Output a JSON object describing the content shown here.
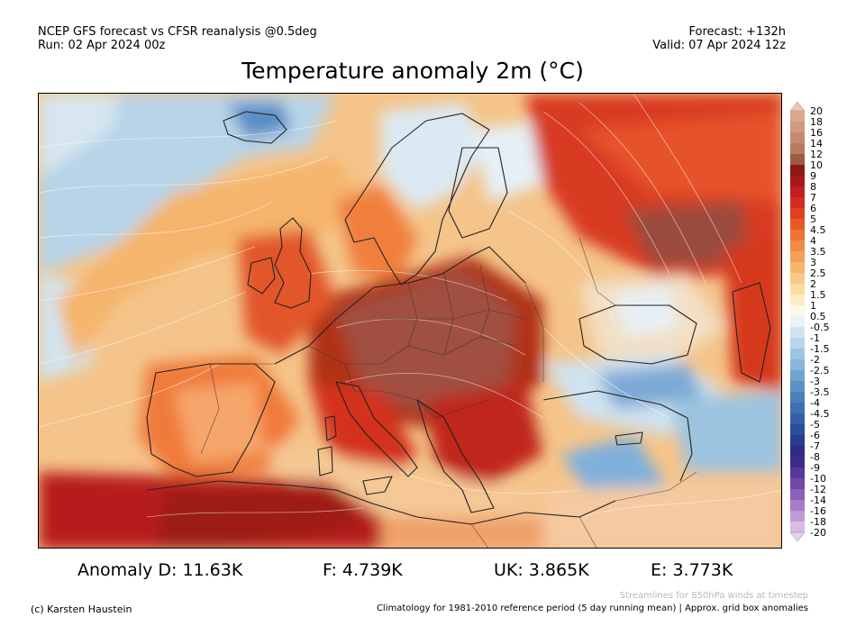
{
  "header": {
    "line1_left": "NCEP GFS forecast vs CFSR reanalysis @0.5deg",
    "line2_left": "Run: 02 Apr 2024 00z",
    "line1_right": "Forecast: +132h",
    "line2_right": "Valid: 07 Apr 2024 12z"
  },
  "title": "Temperature anomaly 2m (°C)",
  "colorbar": {
    "levels": [
      "20",
      "18",
      "16",
      "14",
      "12",
      "10",
      "9",
      "8",
      "7",
      "6",
      "5",
      "4.5",
      "4",
      "3.5",
      "3",
      "2.5",
      "2",
      "1.5",
      "1",
      "0.5",
      "-0.5",
      "-1",
      "-1.5",
      "-2",
      "-2.5",
      "-3",
      "-3.5",
      "-4",
      "-4.5",
      "-5",
      "-6",
      "-7",
      "-8",
      "-9",
      "-10",
      "-12",
      "-14",
      "-16",
      "-18",
      "-20"
    ],
    "colors": [
      "#d9a98d",
      "#cf9a80",
      "#c48970",
      "#b97a62",
      "#9f5a44",
      "#8b1a14",
      "#a5181a",
      "#bf1f1f",
      "#d42b22",
      "#e0401f",
      "#e85a25",
      "#ee7434",
      "#f28a45",
      "#f5a05a",
      "#f8b56f",
      "#fac987",
      "#fbdca3",
      "#fcecc6",
      "#fdf8ea",
      "#e9f3f8",
      "#cfe4f1",
      "#b7d6ea",
      "#9dc6e2",
      "#86b6d9",
      "#6fa4cf",
      "#5b92c4",
      "#4a80ba",
      "#3d6fb0",
      "#3360a8",
      "#2a4d9c",
      "#2a3c8f",
      "#2e2c88",
      "#3e2a8e",
      "#56379b",
      "#7048a8",
      "#8a60b8",
      "#a67cc8",
      "#c09ad8",
      "#d8bce6"
    ],
    "top_arrow_color": "#ebc6b3",
    "bottom_arrow_color": "#e3d2ef"
  },
  "anomalies": {
    "d": "Anomaly D: 11.63K",
    "f": "F: 4.739K",
    "uk": "UK: 3.865K",
    "e": "E: 3.773K"
  },
  "footer": {
    "credit": "(c) Karsten Haustein",
    "streamlines": "Streamlines for 850hPa winds at timestep",
    "climatology": "Climatology for 1981-2010 reference period (5 day running mean) | Approx. grid box anomalies"
  }
}
